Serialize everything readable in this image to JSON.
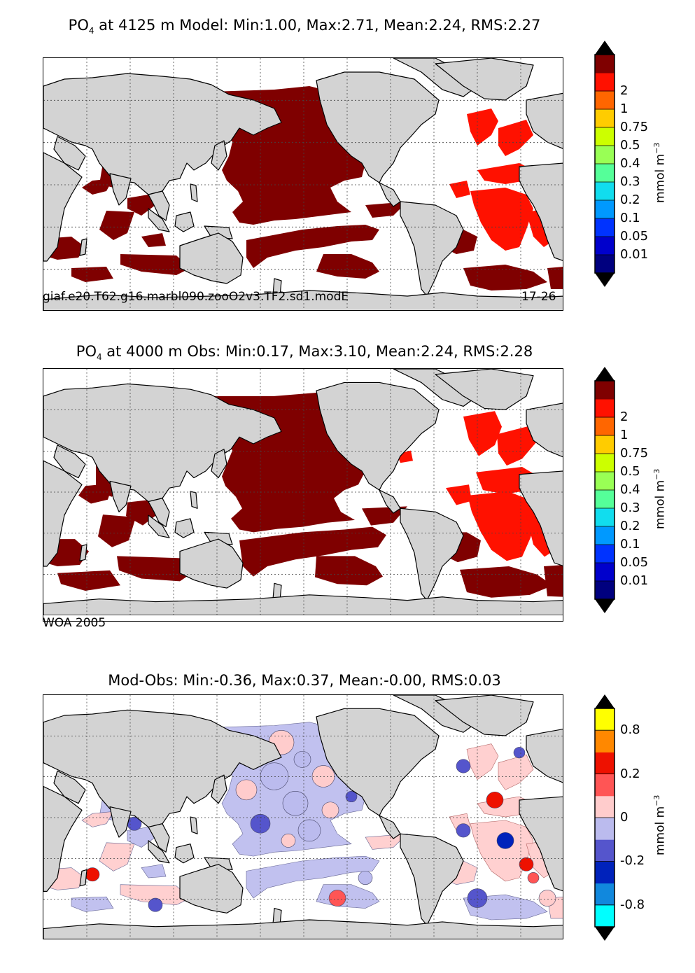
{
  "panels": [
    {
      "title_prefix": "PO",
      "title_sub": "4",
      "title_rest": " at 4125 m Model: Min:1.00, Max:2.71, Mean:2.24, RMS:2.27",
      "caption_left": "giaf.e20.T62.g16.marbl090.zooO2v3.TF2.sd1.modE",
      "caption_right": "17-26",
      "colorbar": {
        "colors": [
          "#00007f",
          "#0000cc",
          "#0033ff",
          "#0099ff",
          "#11ddee",
          "#55ff99",
          "#99ff55",
          "#ccff00",
          "#ffcc00",
          "#ff6600",
          "#ff1100",
          "#7f0000"
        ],
        "labels": [
          "0.01",
          "0.05",
          "0.1",
          "0.2",
          "0.3",
          "0.4",
          "0.5",
          "0.75",
          "1",
          "2"
        ],
        "unit_base": "mmol m",
        "unit_exp": "−3"
      }
    },
    {
      "title_prefix": "PO",
      "title_sub": "4",
      "title_rest": " at 4000 m Obs: Min:0.17, Max:3.10, Mean:2.24, RMS:2.28",
      "caption_left": "WOA 2005",
      "caption_right": "",
      "colorbar": {
        "colors": [
          "#00007f",
          "#0000cc",
          "#0033ff",
          "#0099ff",
          "#11ddee",
          "#55ff99",
          "#99ff55",
          "#ccff00",
          "#ffcc00",
          "#ff6600",
          "#ff1100",
          "#7f0000"
        ],
        "labels": [
          "0.01",
          "0.05",
          "0.1",
          "0.2",
          "0.3",
          "0.4",
          "0.5",
          "0.75",
          "1",
          "2"
        ],
        "unit_base": "mmol m",
        "unit_exp": "−3"
      }
    },
    {
      "title_prefix": "",
      "title_sub": "",
      "title_rest": "Mod-Obs: Min:-0.36, Max:0.37, Mean:-0.00, RMS:0.03",
      "caption_left": "",
      "caption_right": "",
      "colorbar": {
        "colors": [
          "#00ffff",
          "#1188dd",
          "#0022bb",
          "#5555cc",
          "#bbbbee",
          "#ffcccc",
          "#ff5555",
          "#ee1100",
          "#ff8800",
          "#ffff00"
        ],
        "labels": [
          "-0.8",
          "-0.2",
          "0",
          "0.2",
          "0.8"
        ],
        "unit_base": "mmol m",
        "unit_exp": "−3"
      }
    }
  ],
  "colors": {
    "land": "#d3d3d3",
    "model_high": "#7f0000",
    "model_atlantic": "#ff1100",
    "diff_pos": "#ffcccc",
    "diff_neg": "#bbbbee"
  }
}
